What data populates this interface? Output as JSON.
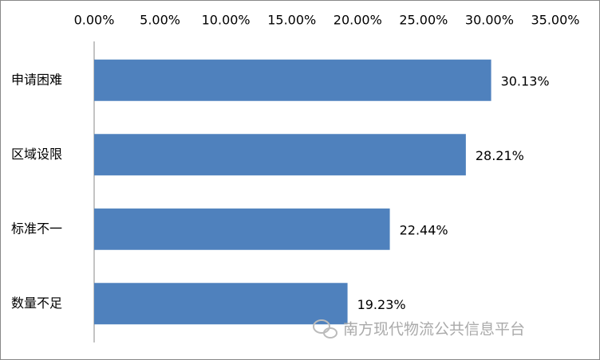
{
  "chart_data": {
    "type": "bar",
    "orientation": "horizontal",
    "categories": [
      "申请困难",
      "区域设限",
      "标准不一",
      "数量不足"
    ],
    "values": [
      30.13,
      28.21,
      22.44,
      19.23
    ],
    "value_labels": [
      "30.13%",
      "28.21%",
      "22.44%",
      "19.23%"
    ],
    "color": "#4f81bd",
    "xlim": [
      0,
      35
    ],
    "xticks": [
      {
        "value": 0,
        "label": "0.00%"
      },
      {
        "value": 5,
        "label": "5.00%"
      },
      {
        "value": 10,
        "label": "10.00%"
      },
      {
        "value": 15,
        "label": "15.00%"
      },
      {
        "value": 20,
        "label": "20.00%"
      },
      {
        "value": 25,
        "label": "25.00%"
      },
      {
        "value": 30,
        "label": "30.00%"
      },
      {
        "value": 35,
        "label": "35.00%"
      }
    ],
    "grid": false,
    "watermark": "南方现代物流公共信息平台"
  }
}
